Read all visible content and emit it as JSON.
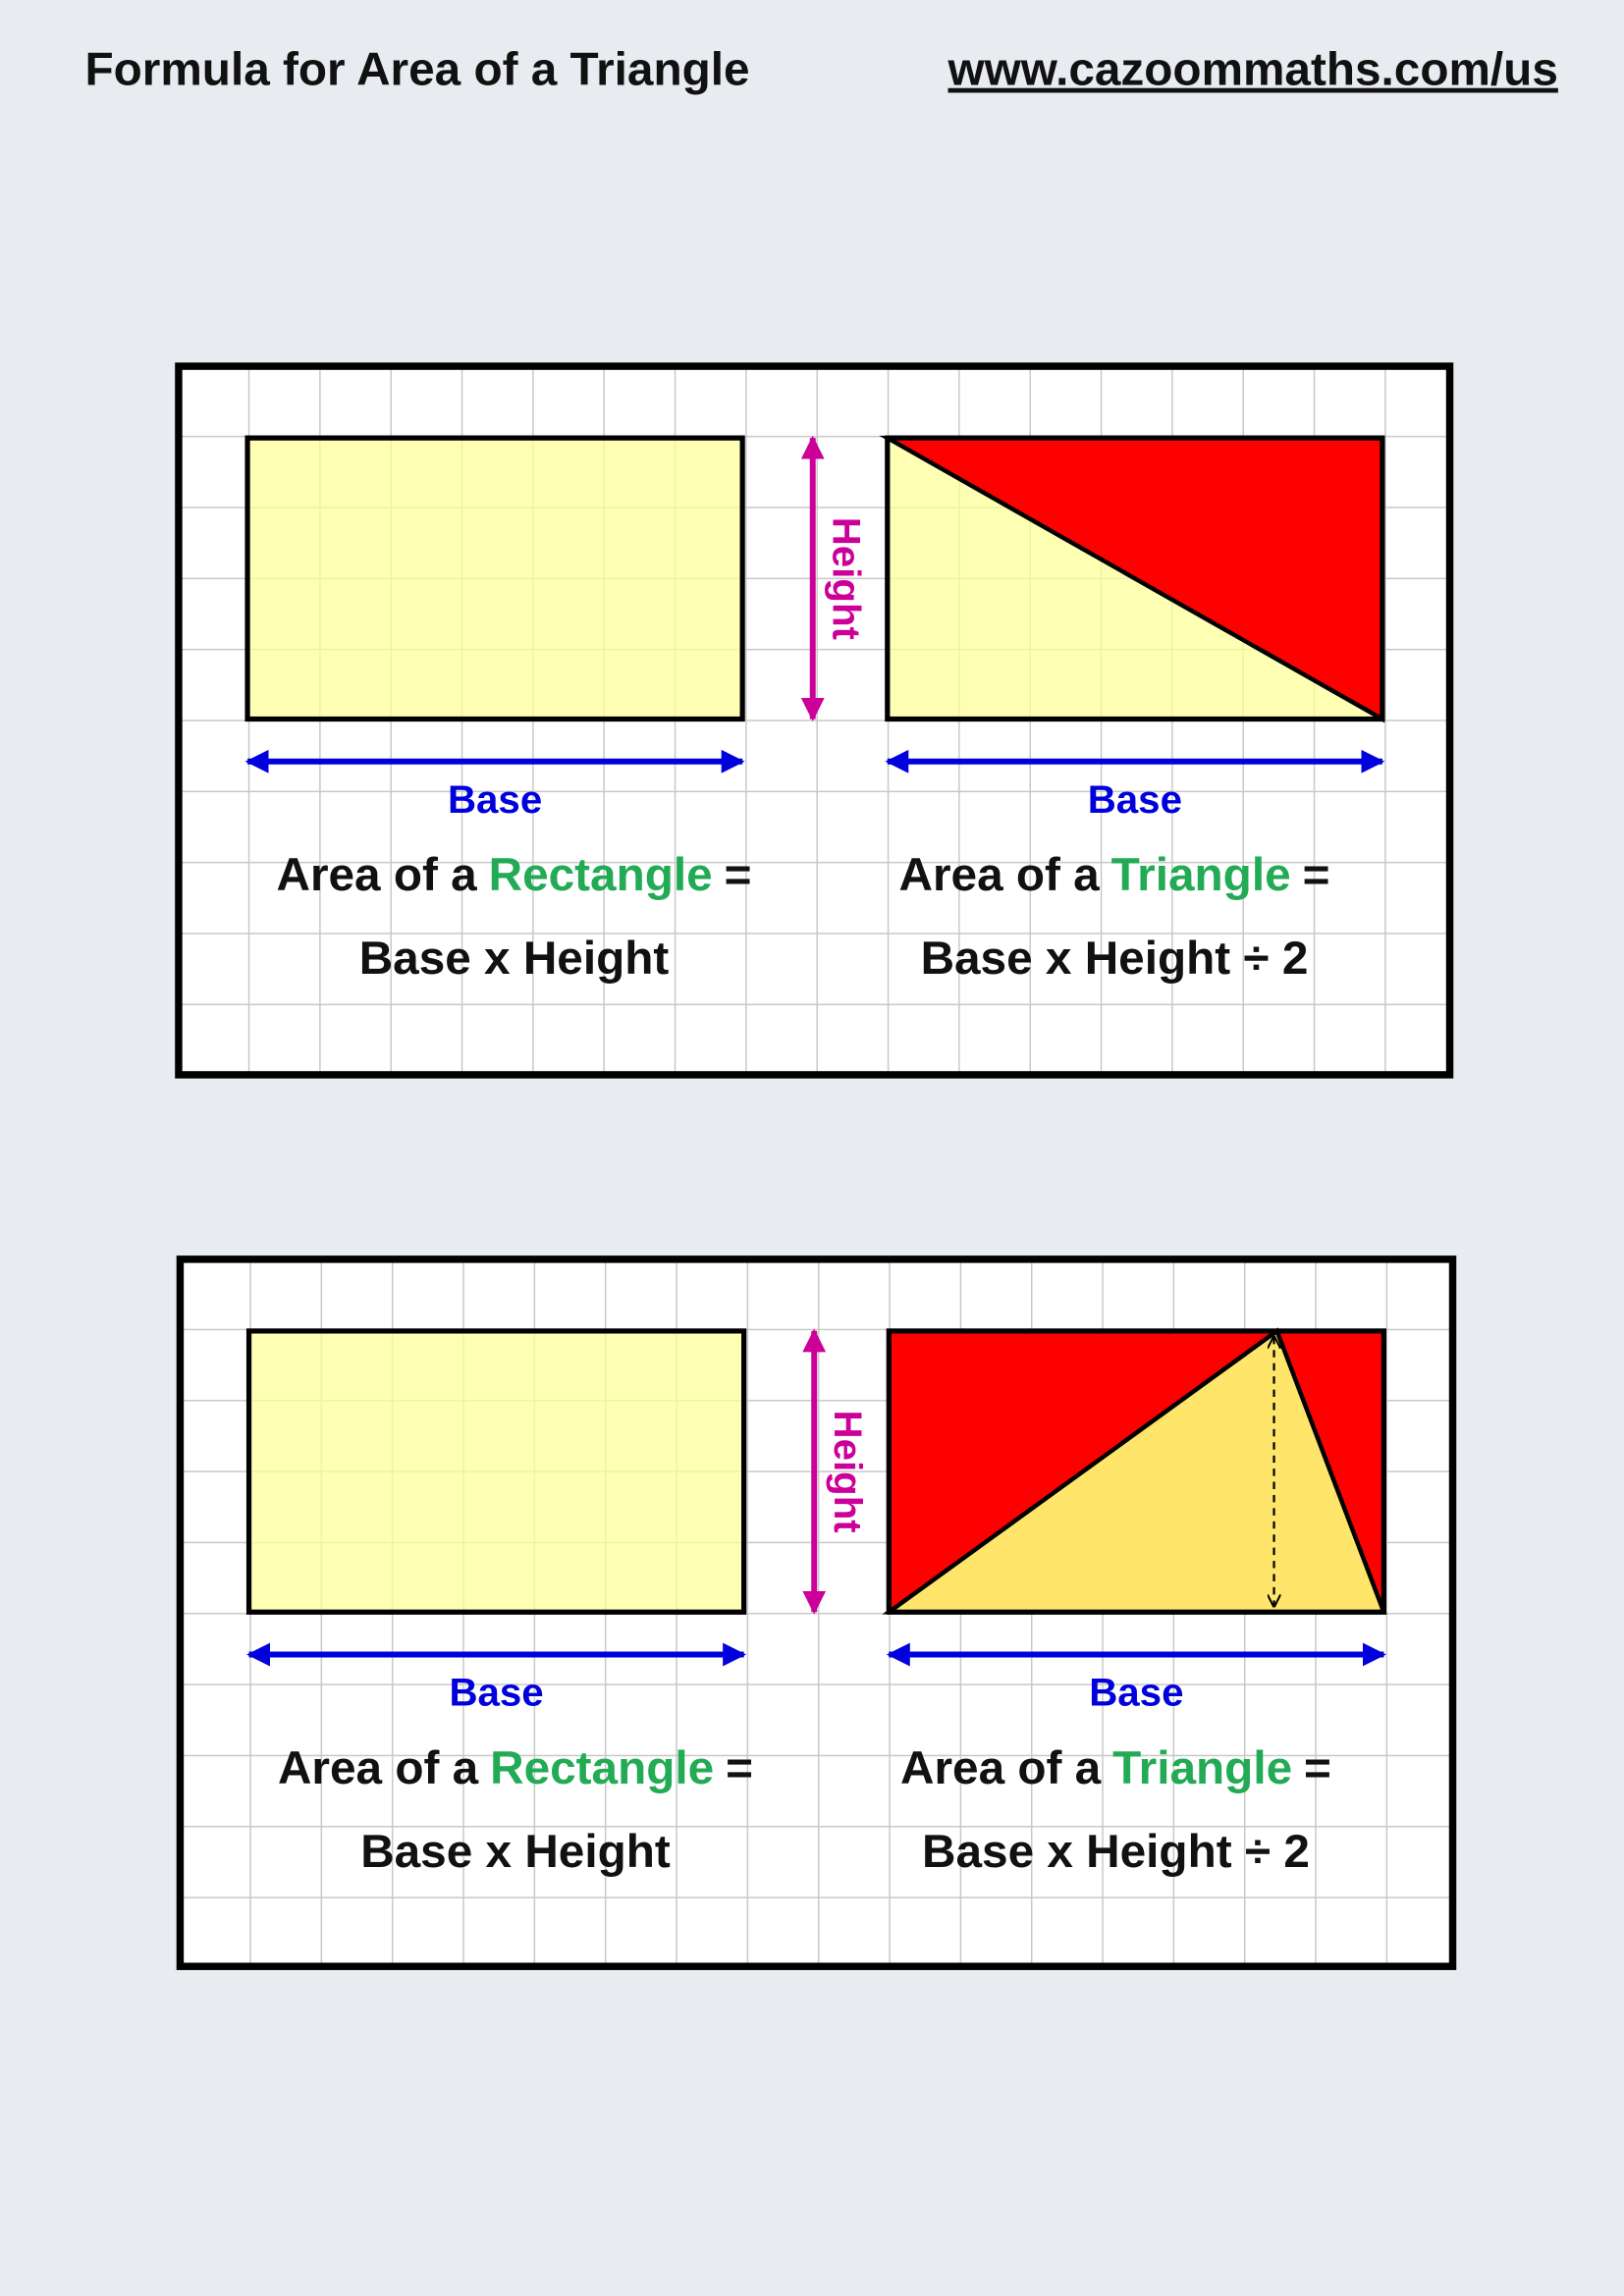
{
  "header": {
    "title": "Formula for Area of a Triangle",
    "url": "www.cazoommaths.com/us"
  },
  "panels": [
    {
      "height_label": "Height",
      "rectangle": {
        "base_label": "Base",
        "line1": [
          "Area of a",
          "Rectangle",
          "="
        ],
        "line2": "Base x Height"
      },
      "triangle": {
        "base_label": "Base",
        "line1": [
          "Area of a",
          "Triangle",
          "="
        ],
        "line2": "Base x Height ÷ 2"
      }
    },
    {
      "height_label": "Height",
      "rectangle": {
        "base_label": "Base",
        "line1": [
          "Area of a",
          "Rectangle",
          "="
        ],
        "line2": "Base x Height"
      },
      "triangle": {
        "base_label": "Base",
        "line1": [
          "Area of a",
          "Triangle",
          "="
        ],
        "line2": "Base x Height ÷ 2"
      }
    }
  ]
}
